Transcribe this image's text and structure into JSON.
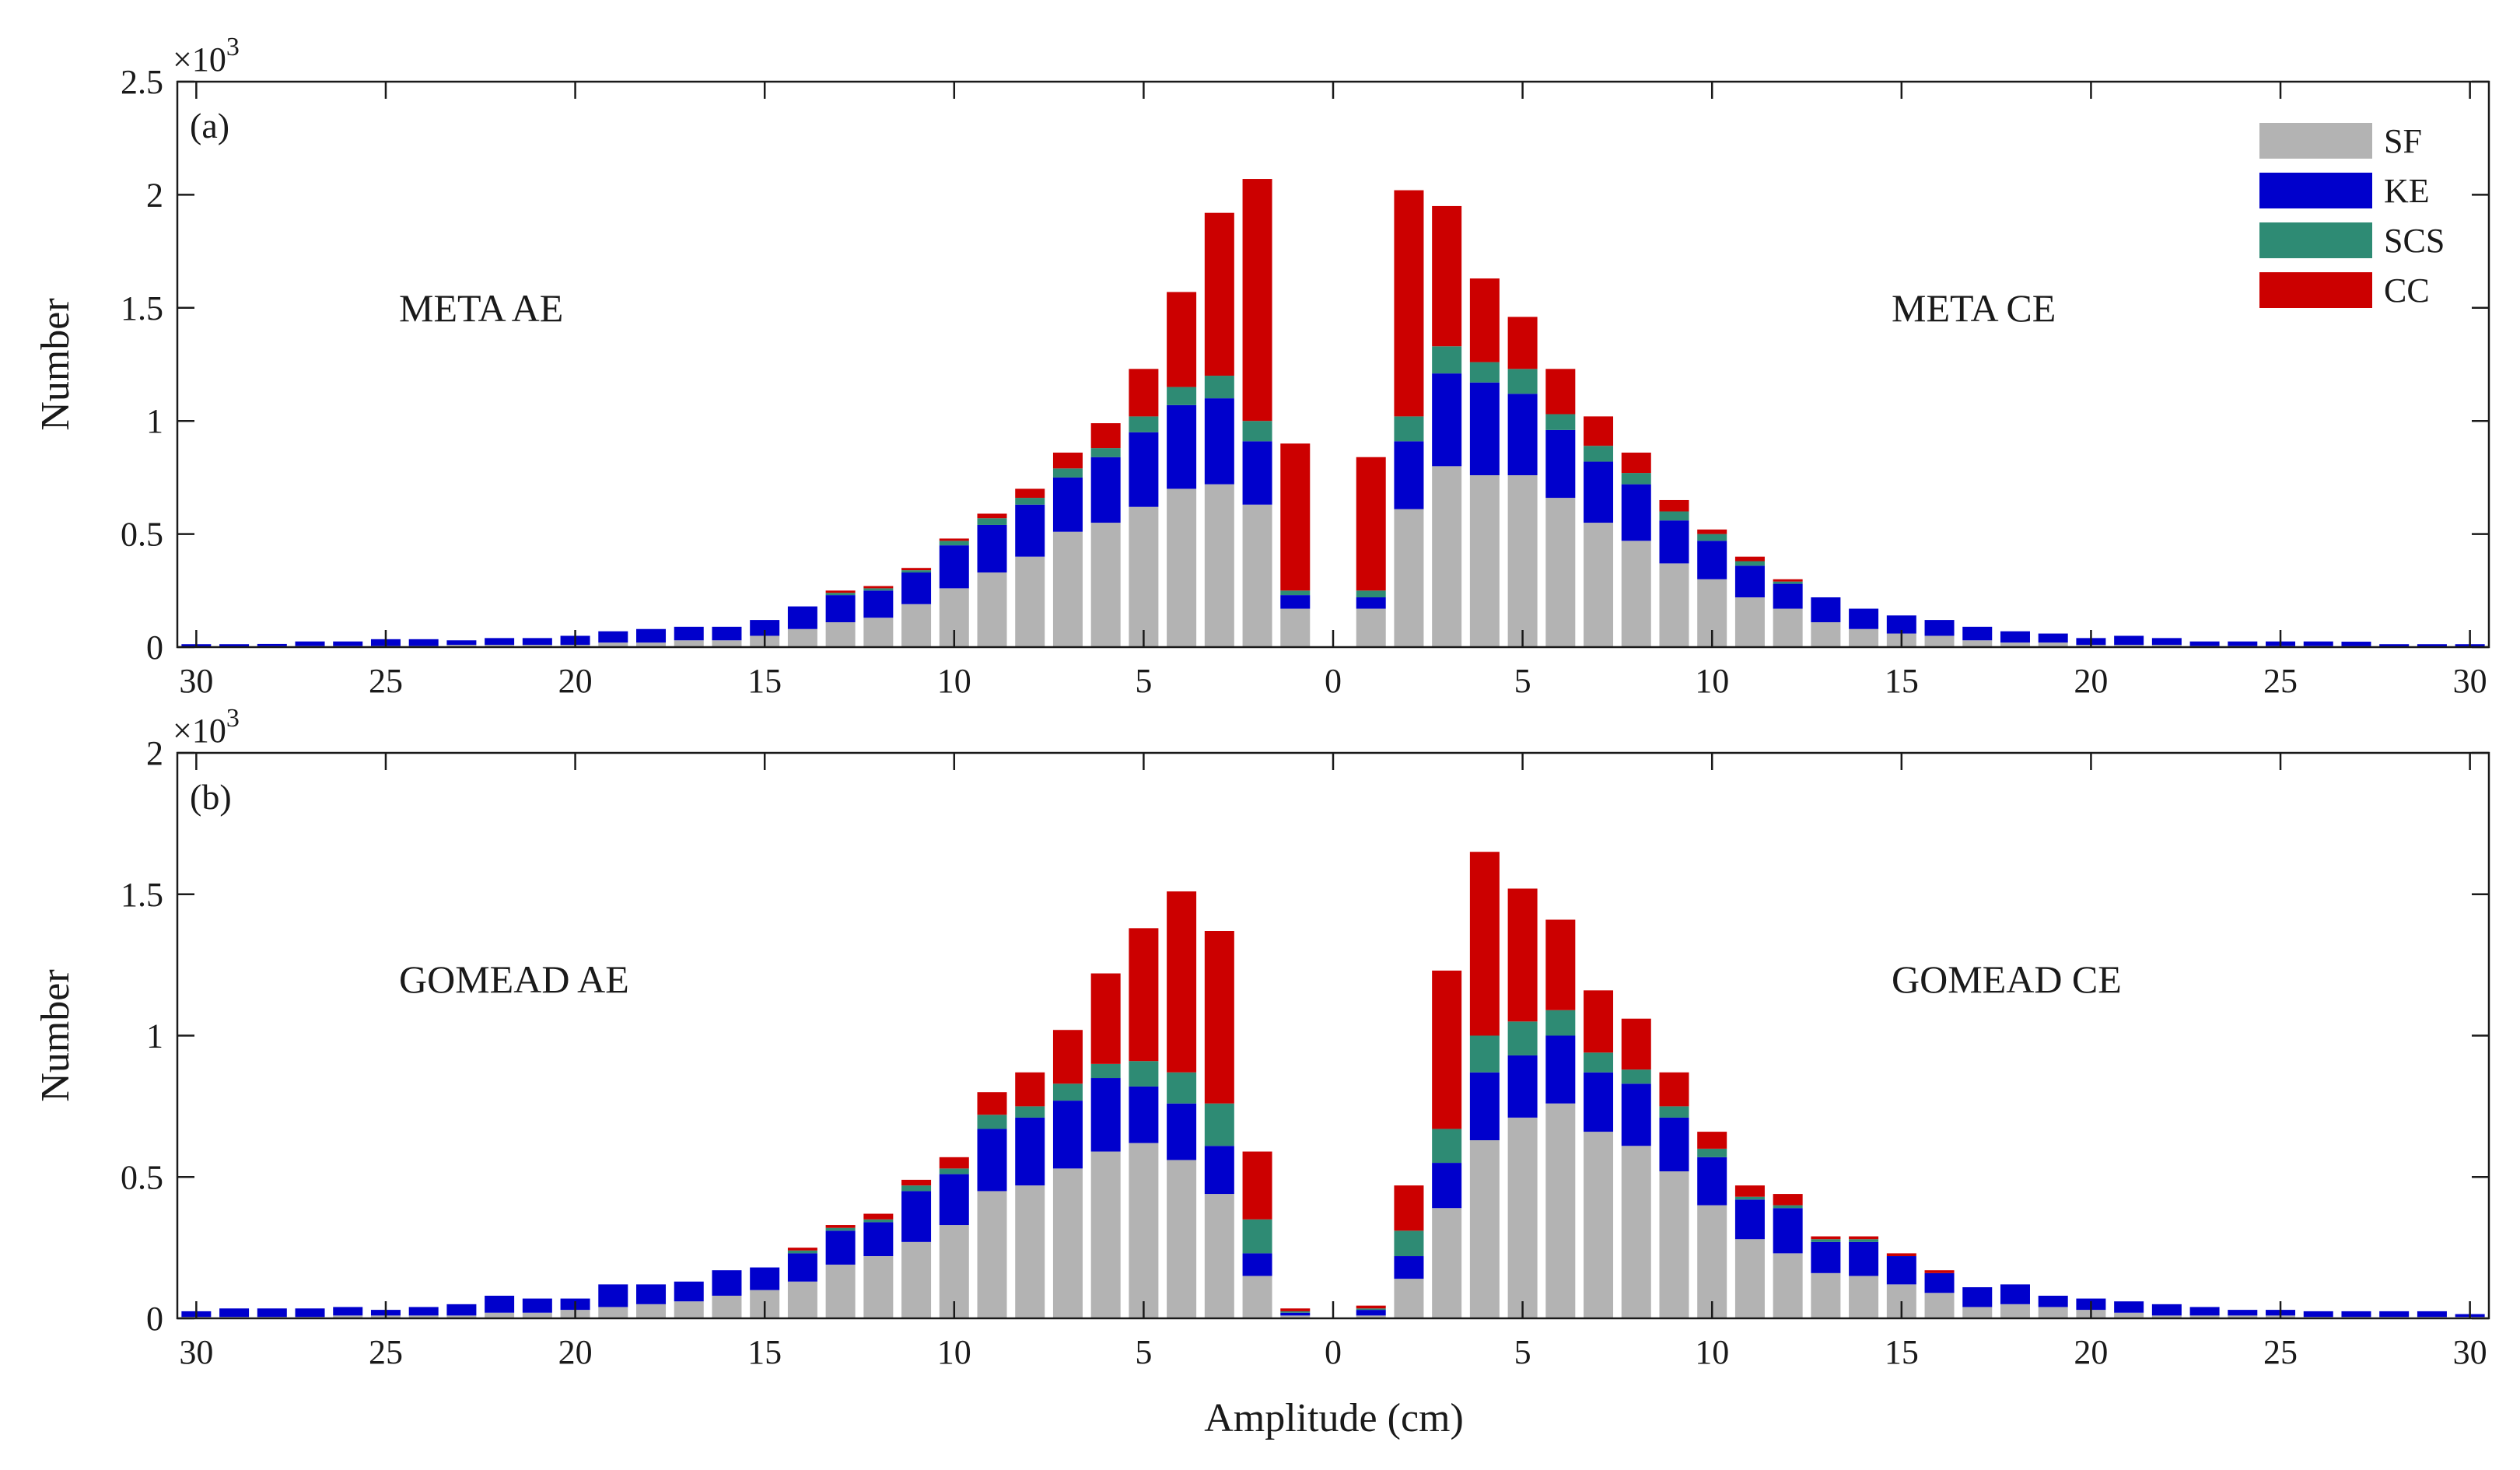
{
  "chart_data": {
    "type": "bar",
    "stacked": true,
    "x_label": "Amplitude (cm)",
    "y_label": "Number",
    "y_multiplier_base": "×10",
    "y_multiplier_exp": "3",
    "x_ticks": [
      "30",
      "25",
      "20",
      "15",
      "10",
      "5",
      "0",
      "5",
      "10",
      "15",
      "20",
      "25",
      "30"
    ],
    "x_axis_note": "left half = AE, amplitude increasing to the left from 0; right half = CE, amplitude increasing to the right from 0",
    "legend": [
      {
        "name": "SF",
        "color": "#b3b3b3"
      },
      {
        "name": "KE",
        "color": "#0000cc"
      },
      {
        "name": "SCS",
        "color": "#2e8b74"
      },
      {
        "name": "CC",
        "color": "#cc0000"
      }
    ],
    "panels": [
      {
        "label": "(a)",
        "ylim": [
          0,
          2.5
        ],
        "y_ticks": [
          "0",
          "0.5",
          "1",
          "1.5",
          "2",
          "2.5"
        ],
        "left_title": "META AE",
        "right_title": "META CE",
        "amplitudes": [
          1,
          2,
          3,
          4,
          5,
          6,
          7,
          8,
          9,
          10,
          11,
          12,
          13,
          14,
          15,
          16,
          17,
          18,
          19,
          20,
          21,
          22,
          23,
          24,
          25,
          26,
          27,
          28,
          29,
          30
        ],
        "AE": {
          "SF": [
            0.17,
            0.63,
            0.72,
            0.7,
            0.62,
            0.55,
            0.51,
            0.4,
            0.33,
            0.26,
            0.19,
            0.13,
            0.11,
            0.08,
            0.05,
            0.03,
            0.03,
            0.02,
            0.02,
            0.01,
            0.01,
            0.01,
            0.01,
            0.005,
            0.005,
            0.005,
            0.005,
            0.004,
            0.003,
            0.003
          ],
          "KE": [
            0.06,
            0.28,
            0.38,
            0.37,
            0.33,
            0.29,
            0.24,
            0.23,
            0.21,
            0.19,
            0.14,
            0.12,
            0.12,
            0.1,
            0.07,
            0.06,
            0.06,
            0.06,
            0.05,
            0.04,
            0.03,
            0.03,
            0.02,
            0.03,
            0.03,
            0.02,
            0.02,
            0.01,
            0.01,
            0.01
          ],
          "SCS": [
            0.02,
            0.09,
            0.1,
            0.08,
            0.07,
            0.04,
            0.04,
            0.03,
            0.03,
            0.02,
            0.01,
            0.01,
            0.01,
            0.0,
            0.0,
            0.0,
            0.0,
            0.0,
            0.0,
            0.0,
            0.0,
            0.0,
            0.0,
            0.0,
            0.0,
            0.0,
            0.0,
            0.0,
            0.0,
            0.0
          ],
          "CC": [
            0.65,
            1.07,
            0.72,
            0.42,
            0.21,
            0.11,
            0.07,
            0.04,
            0.02,
            0.01,
            0.01,
            0.01,
            0.01,
            0.0,
            0.0,
            0.0,
            0.0,
            0.0,
            0.0,
            0.0,
            0.0,
            0.0,
            0.0,
            0.0,
            0.0,
            0.0,
            0.0,
            0.0,
            0.0,
            0.0
          ]
        },
        "CE": {
          "SF": [
            0.17,
            0.61,
            0.8,
            0.76,
            0.76,
            0.66,
            0.55,
            0.47,
            0.37,
            0.3,
            0.22,
            0.17,
            0.11,
            0.08,
            0.06,
            0.05,
            0.03,
            0.02,
            0.02,
            0.01,
            0.01,
            0.01,
            0.005,
            0.005,
            0.005,
            0.005,
            0.004,
            0.003,
            0.003,
            0.003
          ],
          "KE": [
            0.05,
            0.3,
            0.41,
            0.41,
            0.36,
            0.3,
            0.27,
            0.25,
            0.19,
            0.17,
            0.14,
            0.11,
            0.11,
            0.09,
            0.08,
            0.07,
            0.06,
            0.05,
            0.04,
            0.03,
            0.04,
            0.03,
            0.02,
            0.02,
            0.02,
            0.02,
            0.02,
            0.01,
            0.01,
            0.01
          ],
          "SCS": [
            0.03,
            0.11,
            0.12,
            0.09,
            0.11,
            0.07,
            0.07,
            0.05,
            0.04,
            0.03,
            0.02,
            0.01,
            0.0,
            0.0,
            0.0,
            0.0,
            0.0,
            0.0,
            0.0,
            0.0,
            0.0,
            0.0,
            0.0,
            0.0,
            0.0,
            0.0,
            0.0,
            0.0,
            0.0,
            0.0
          ],
          "CC": [
            0.59,
            1.0,
            0.62,
            0.37,
            0.23,
            0.2,
            0.13,
            0.09,
            0.05,
            0.02,
            0.02,
            0.01,
            0.0,
            0.0,
            0.0,
            0.0,
            0.0,
            0.0,
            0.0,
            0.0,
            0.0,
            0.0,
            0.0,
            0.0,
            0.0,
            0.0,
            0.0,
            0.0,
            0.0,
            0.0
          ]
        }
      },
      {
        "label": "(b)",
        "ylim": [
          0,
          2
        ],
        "y_ticks": [
          "0",
          "0.5",
          "1",
          "1.5",
          "2"
        ],
        "left_title": "GOMEAD AE",
        "right_title": "GOMEAD CE",
        "amplitudes": [
          1,
          2,
          3,
          4,
          5,
          6,
          7,
          8,
          9,
          10,
          11,
          12,
          13,
          14,
          15,
          16,
          17,
          18,
          19,
          20,
          21,
          22,
          23,
          24,
          25,
          26,
          27,
          28,
          29,
          30
        ],
        "AE": {
          "SF": [
            0.01,
            0.15,
            0.44,
            0.56,
            0.62,
            0.59,
            0.53,
            0.47,
            0.45,
            0.33,
            0.27,
            0.22,
            0.19,
            0.13,
            0.1,
            0.08,
            0.06,
            0.05,
            0.04,
            0.03,
            0.02,
            0.02,
            0.01,
            0.01,
            0.01,
            0.01,
            0.005,
            0.005,
            0.005,
            0.005
          ],
          "KE": [
            0.01,
            0.08,
            0.17,
            0.2,
            0.2,
            0.26,
            0.24,
            0.24,
            0.22,
            0.18,
            0.18,
            0.12,
            0.12,
            0.1,
            0.08,
            0.09,
            0.07,
            0.07,
            0.08,
            0.04,
            0.05,
            0.06,
            0.04,
            0.03,
            0.02,
            0.03,
            0.03,
            0.03,
            0.03,
            0.02
          ],
          "SCS": [
            0.005,
            0.12,
            0.15,
            0.11,
            0.09,
            0.05,
            0.06,
            0.04,
            0.05,
            0.02,
            0.02,
            0.01,
            0.01,
            0.01,
            0.0,
            0.0,
            0.0,
            0.0,
            0.0,
            0.0,
            0.0,
            0.0,
            0.0,
            0.0,
            0.0,
            0.0,
            0.0,
            0.0,
            0.0,
            0.0
          ],
          "CC": [
            0.01,
            0.24,
            0.61,
            0.64,
            0.47,
            0.32,
            0.19,
            0.12,
            0.08,
            0.04,
            0.02,
            0.02,
            0.01,
            0.01,
            0.0,
            0.0,
            0.0,
            0.0,
            0.0,
            0.0,
            0.0,
            0.0,
            0.0,
            0.0,
            0.0,
            0.0,
            0.0,
            0.0,
            0.0,
            0.0
          ]
        },
        "CE": {
          "SF": [
            0.01,
            0.14,
            0.39,
            0.63,
            0.71,
            0.76,
            0.66,
            0.61,
            0.52,
            0.4,
            0.28,
            0.23,
            0.16,
            0.15,
            0.12,
            0.09,
            0.04,
            0.05,
            0.04,
            0.03,
            0.02,
            0.01,
            0.01,
            0.01,
            0.01,
            0.005,
            0.005,
            0.005,
            0.005,
            0.005
          ],
          "KE": [
            0.02,
            0.08,
            0.16,
            0.24,
            0.22,
            0.24,
            0.21,
            0.22,
            0.19,
            0.17,
            0.14,
            0.16,
            0.11,
            0.12,
            0.1,
            0.07,
            0.07,
            0.07,
            0.04,
            0.04,
            0.04,
            0.04,
            0.03,
            0.02,
            0.02,
            0.02,
            0.02,
            0.02,
            0.02,
            0.01
          ],
          "SCS": [
            0.005,
            0.09,
            0.12,
            0.13,
            0.12,
            0.09,
            0.07,
            0.05,
            0.04,
            0.03,
            0.01,
            0.01,
            0.01,
            0.01,
            0.0,
            0.0,
            0.0,
            0.0,
            0.0,
            0.0,
            0.0,
            0.0,
            0.0,
            0.0,
            0.0,
            0.0,
            0.0,
            0.0,
            0.0,
            0.0
          ],
          "CC": [
            0.01,
            0.16,
            0.56,
            0.65,
            0.47,
            0.32,
            0.22,
            0.18,
            0.12,
            0.06,
            0.04,
            0.04,
            0.01,
            0.01,
            0.01,
            0.01,
            0.0,
            0.0,
            0.0,
            0.0,
            0.0,
            0.0,
            0.0,
            0.0,
            0.0,
            0.0,
            0.0,
            0.0,
            0.0,
            0.0
          ]
        }
      }
    ]
  }
}
